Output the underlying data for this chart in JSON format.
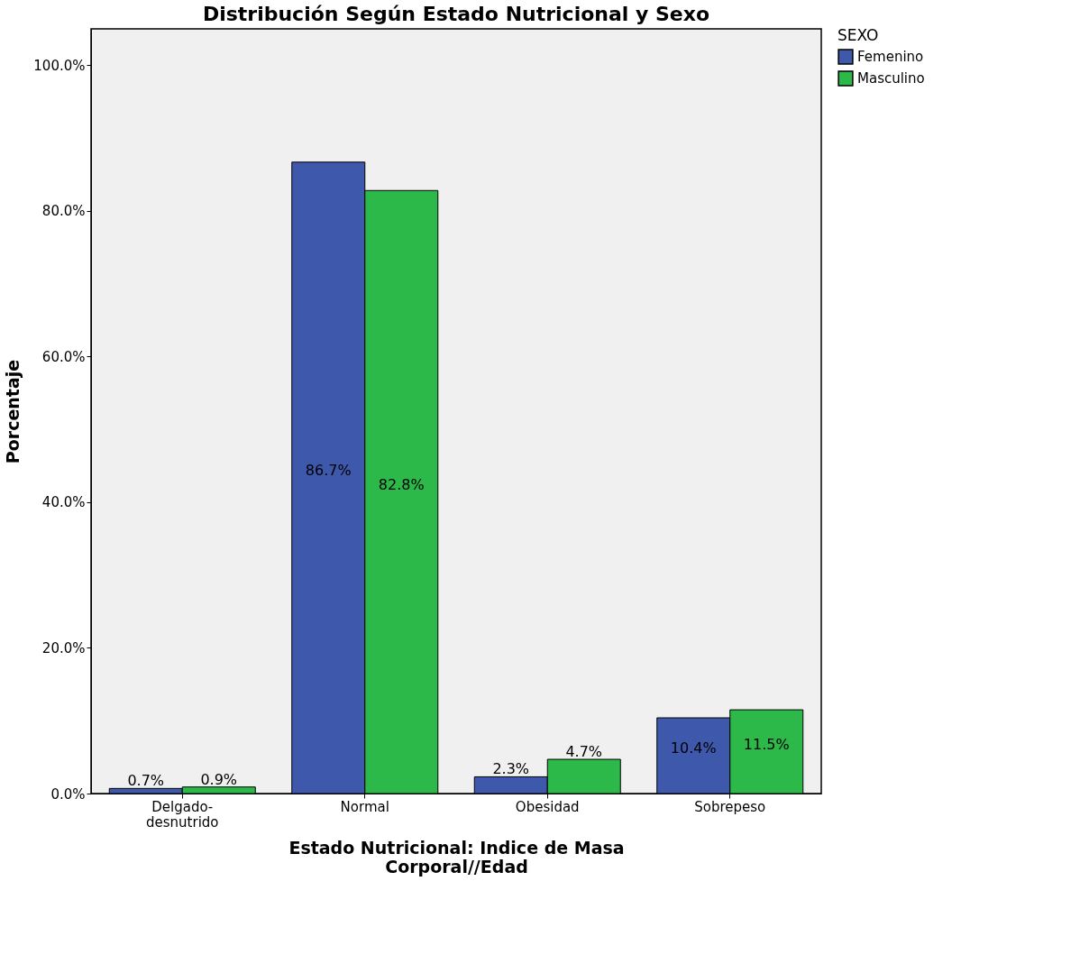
{
  "chart_data": {
    "type": "bar",
    "title": "Distribución Según Estado Nutricional y Sexo",
    "xlabel": "Estado Nutricional: Indice de Masa Corporal//Edad",
    "ylabel": "Porcentaje",
    "legend_title": "SEXO",
    "categories": [
      "Delgado-desnutrido",
      "Normal",
      "Obesidad",
      "Sobrepeso"
    ],
    "series": [
      {
        "name": "Femenino",
        "color": "#3e58ac",
        "values": [
          0.7,
          86.7,
          2.3,
          10.4
        ],
        "value_labels": [
          "0.7%",
          "86.7%",
          "2.3%",
          "10.4%"
        ]
      },
      {
        "name": "Masculino",
        "color": "#2db84a",
        "values": [
          0.9,
          82.8,
          4.7,
          11.5
        ],
        "value_labels": [
          "0.9%",
          "82.8%",
          "4.7%",
          "11.5%"
        ]
      }
    ],
    "ylim": [
      0,
      105
    ],
    "yticks": [
      {
        "value": 0,
        "label": "0.0%"
      },
      {
        "value": 20,
        "label": "20.0%"
      },
      {
        "value": 40,
        "label": "40.0%"
      },
      {
        "value": 60,
        "label": "60.0%"
      },
      {
        "value": 80,
        "label": "80.0%"
      },
      {
        "value": 100,
        "label": "100.0%"
      }
    ],
    "grid": false,
    "legend": "top right"
  }
}
